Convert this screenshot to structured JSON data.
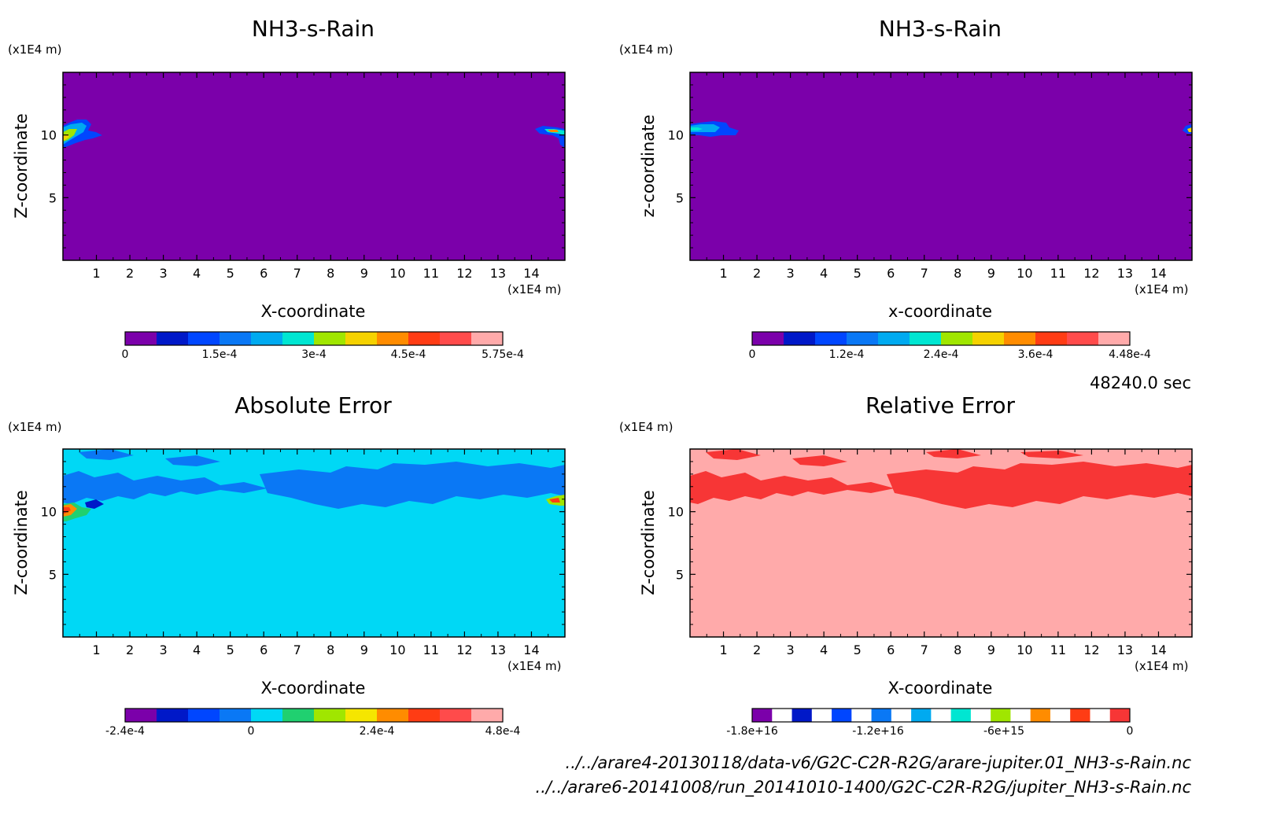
{
  "timestamp": "48240.0 sec",
  "files": [
    "../../arare4-20130118/data-v6/G2C-C2R-R2G/arare-jupiter.01_NH3-s-Rain.nc",
    "../../arare6-20141008/run_20141010-1400/G2C-C2R-R2G/jupiter_NH3-s-Rain.nc"
  ],
  "colors": {
    "background_panels": [
      "#7b00aa",
      "#7b00aa",
      "#00d8f5",
      "#ffaaaa"
    ],
    "secondary_fill": [
      "#7b00aa",
      "#7b00aa",
      "#0a78f5",
      "#f73636"
    ]
  },
  "chart_data": [
    {
      "type": "heatmap",
      "title": "NH3-s-Rain",
      "xlabel": "X-coordinate",
      "ylabel": "Z-coordinate",
      "x_unit": "(x1E4 m)",
      "z_unit": "(x1E4 m)",
      "xlim": [
        0,
        15
      ],
      "zlim": [
        0,
        15
      ],
      "x_ticks": [
        "1",
        "2",
        "3",
        "4",
        "5",
        "6",
        "7",
        "8",
        "9",
        "10",
        "11",
        "12",
        "13",
        "14"
      ],
      "z_ticks": [
        "5",
        "10"
      ],
      "colorbar": {
        "colors": [
          "#7b00aa",
          "#0018c8",
          "#0046ff",
          "#0a78f5",
          "#00aaf0",
          "#00e6d2",
          "#a0e600",
          "#f5d200",
          "#ff8c00",
          "#ff3c14",
          "#ff4b4b",
          "#ffaaaa"
        ],
        "tick_labels": [
          "0",
          "1.5e-4",
          "3e-4",
          "4.5e-4",
          "5.75e-4"
        ]
      }
    },
    {
      "type": "heatmap",
      "title": "NH3-s-Rain",
      "xlabel": "x-coordinate",
      "ylabel": "z-coordinate",
      "x_unit": "(x1E4 m)",
      "z_unit": "(x1E4 m)",
      "xlim": [
        0,
        15
      ],
      "zlim": [
        0,
        15
      ],
      "x_ticks": [
        "1",
        "2",
        "3",
        "4",
        "5",
        "6",
        "7",
        "8",
        "9",
        "10",
        "11",
        "12",
        "13",
        "14"
      ],
      "z_ticks": [
        "5",
        "10"
      ],
      "colorbar": {
        "colors": [
          "#7b00aa",
          "#0018c8",
          "#0046ff",
          "#0a78f5",
          "#00aaf0",
          "#00e6d2",
          "#a0e600",
          "#f5d200",
          "#ff8c00",
          "#ff3c14",
          "#ff4b4b",
          "#ffaaaa"
        ],
        "tick_labels": [
          "0",
          "1.2e-4",
          "2.4e-4",
          "3.6e-4",
          "4.48e-4"
        ]
      }
    },
    {
      "type": "heatmap",
      "title": "Absolute Error",
      "xlabel": "X-coordinate",
      "ylabel": "Z-coordinate",
      "x_unit": "(x1E4 m)",
      "z_unit": "(x1E4 m)",
      "xlim": [
        0,
        15
      ],
      "zlim": [
        0,
        15
      ],
      "x_ticks": [
        "1",
        "2",
        "3",
        "4",
        "5",
        "6",
        "7",
        "8",
        "9",
        "10",
        "11",
        "12",
        "13",
        "14"
      ],
      "z_ticks": [
        "5",
        "10"
      ],
      "colorbar": {
        "colors": [
          "#7b00aa",
          "#0018c8",
          "#0046ff",
          "#0a78f5",
          "#00d8f5",
          "#20d070",
          "#a0e600",
          "#f5e600",
          "#ff8c00",
          "#ff3c14",
          "#ff4b4b",
          "#ffaaaa"
        ],
        "tick_labels": [
          "-2.4e-4",
          "0",
          "2.4e-4",
          "4.8e-4"
        ]
      }
    },
    {
      "type": "heatmap",
      "title": "Relative Error",
      "xlabel": "X-coordinate",
      "ylabel": "Z-coordinate",
      "x_unit": "(x1E4 m)",
      "z_unit": "(x1E4 m)",
      "xlim": [
        0,
        15
      ],
      "zlim": [
        0,
        15
      ],
      "x_ticks": [
        "1",
        "2",
        "3",
        "4",
        "5",
        "6",
        "7",
        "8",
        "9",
        "10",
        "11",
        "12",
        "13",
        "14"
      ],
      "z_ticks": [
        "5",
        "10"
      ],
      "colorbar": {
        "colors": [
          "#7b00aa",
          "#ffffff",
          "#0018c8",
          "#ffffff",
          "#0046ff",
          "#ffffff",
          "#0a78f5",
          "#ffffff",
          "#00aaf0",
          "#ffffff",
          "#00e6d2",
          "#ffffff",
          "#a0e600",
          "#ffffff",
          "#ff8c00",
          "#ffffff",
          "#ff3c14",
          "#ffffff",
          "#f73636"
        ],
        "tick_labels": [
          "-1.8e+16",
          "-1.2e+16",
          "-6e+15",
          "0"
        ]
      }
    }
  ]
}
